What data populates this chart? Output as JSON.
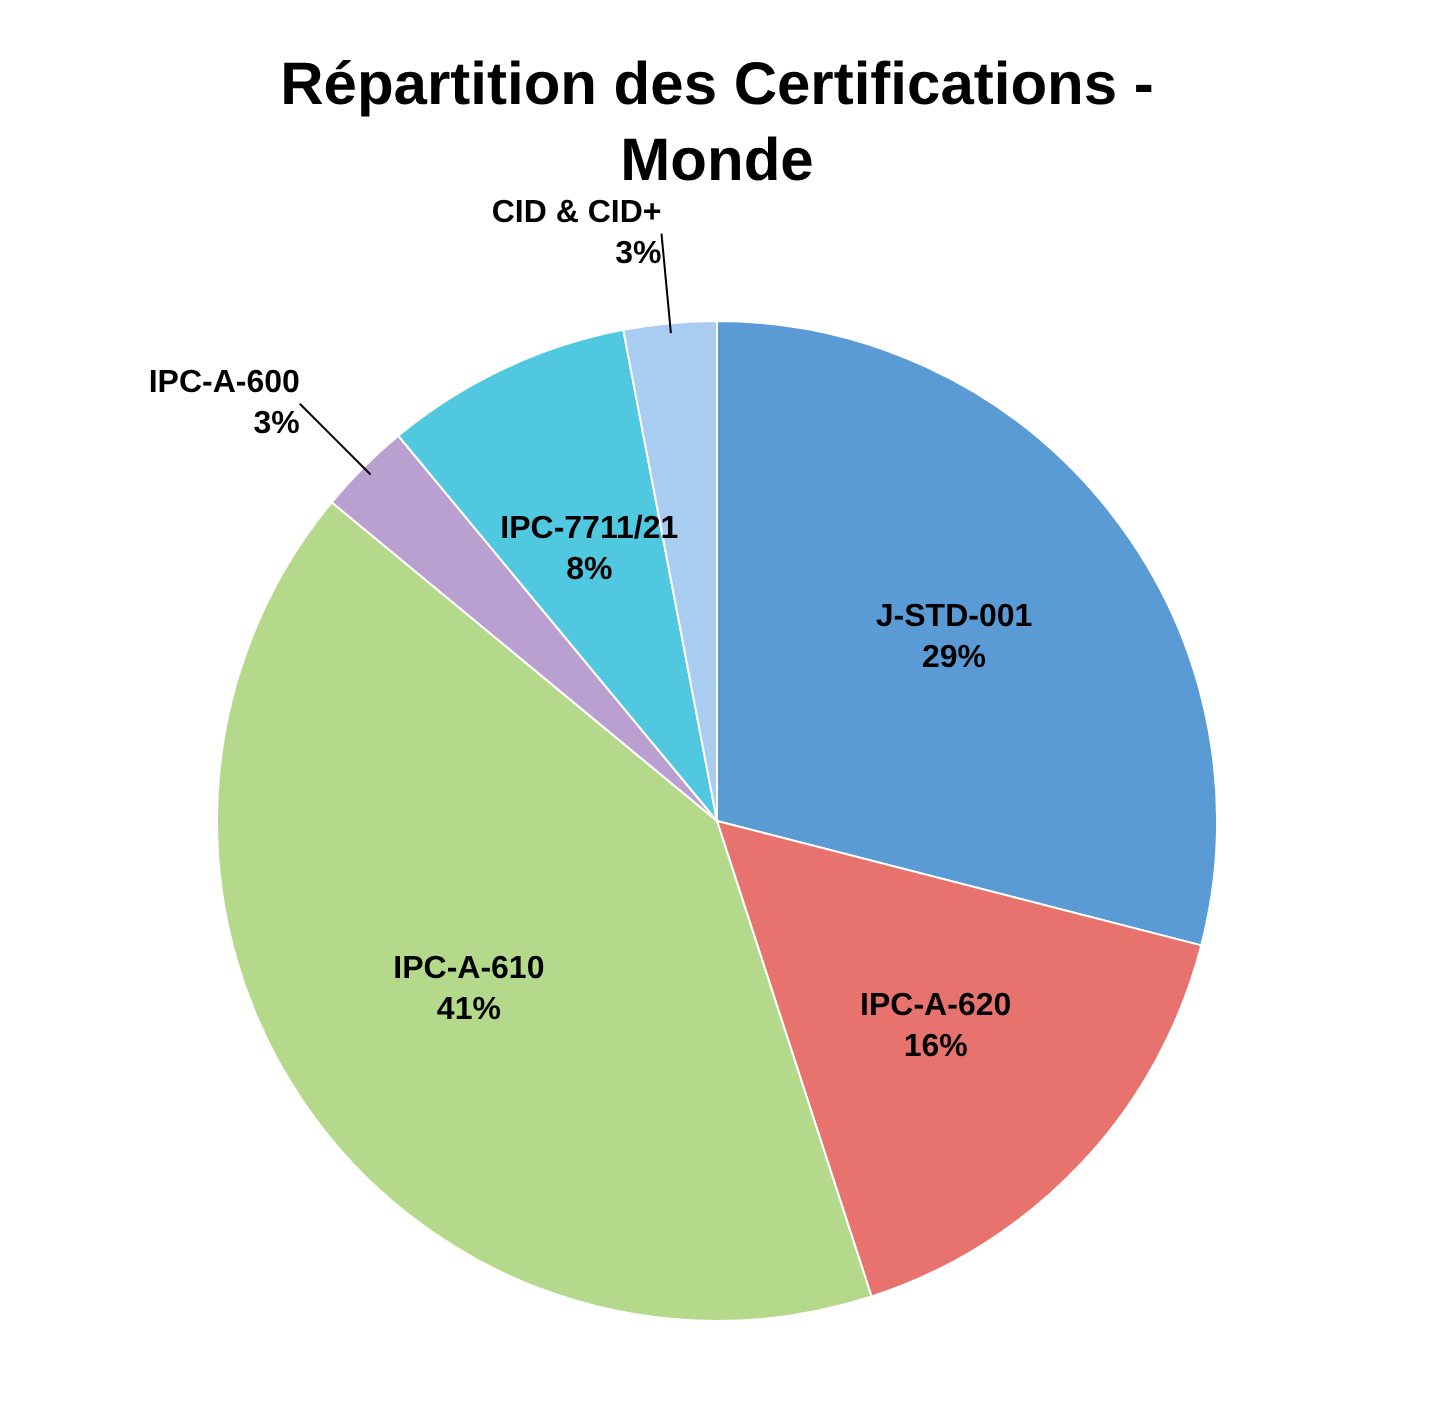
{
  "chart_data": {
    "type": "pie",
    "title": "Répartition des Certifications - Monde",
    "categories": [
      "J-STD-001",
      "IPC-A-620",
      "IPC-A-610",
      "IPC-A-600",
      "IPC-7711/21",
      "CID & CID+"
    ],
    "values": [
      29,
      16,
      41,
      3,
      8,
      3
    ],
    "value_labels": [
      "29%",
      "16%",
      "41%",
      "3%",
      "8%",
      "3%"
    ],
    "colors": [
      "#5b9bd5",
      "#e8726e",
      "#b5d98a",
      "#b9a0d0",
      "#4fc8e0",
      "#a9cdf0"
    ]
  }
}
